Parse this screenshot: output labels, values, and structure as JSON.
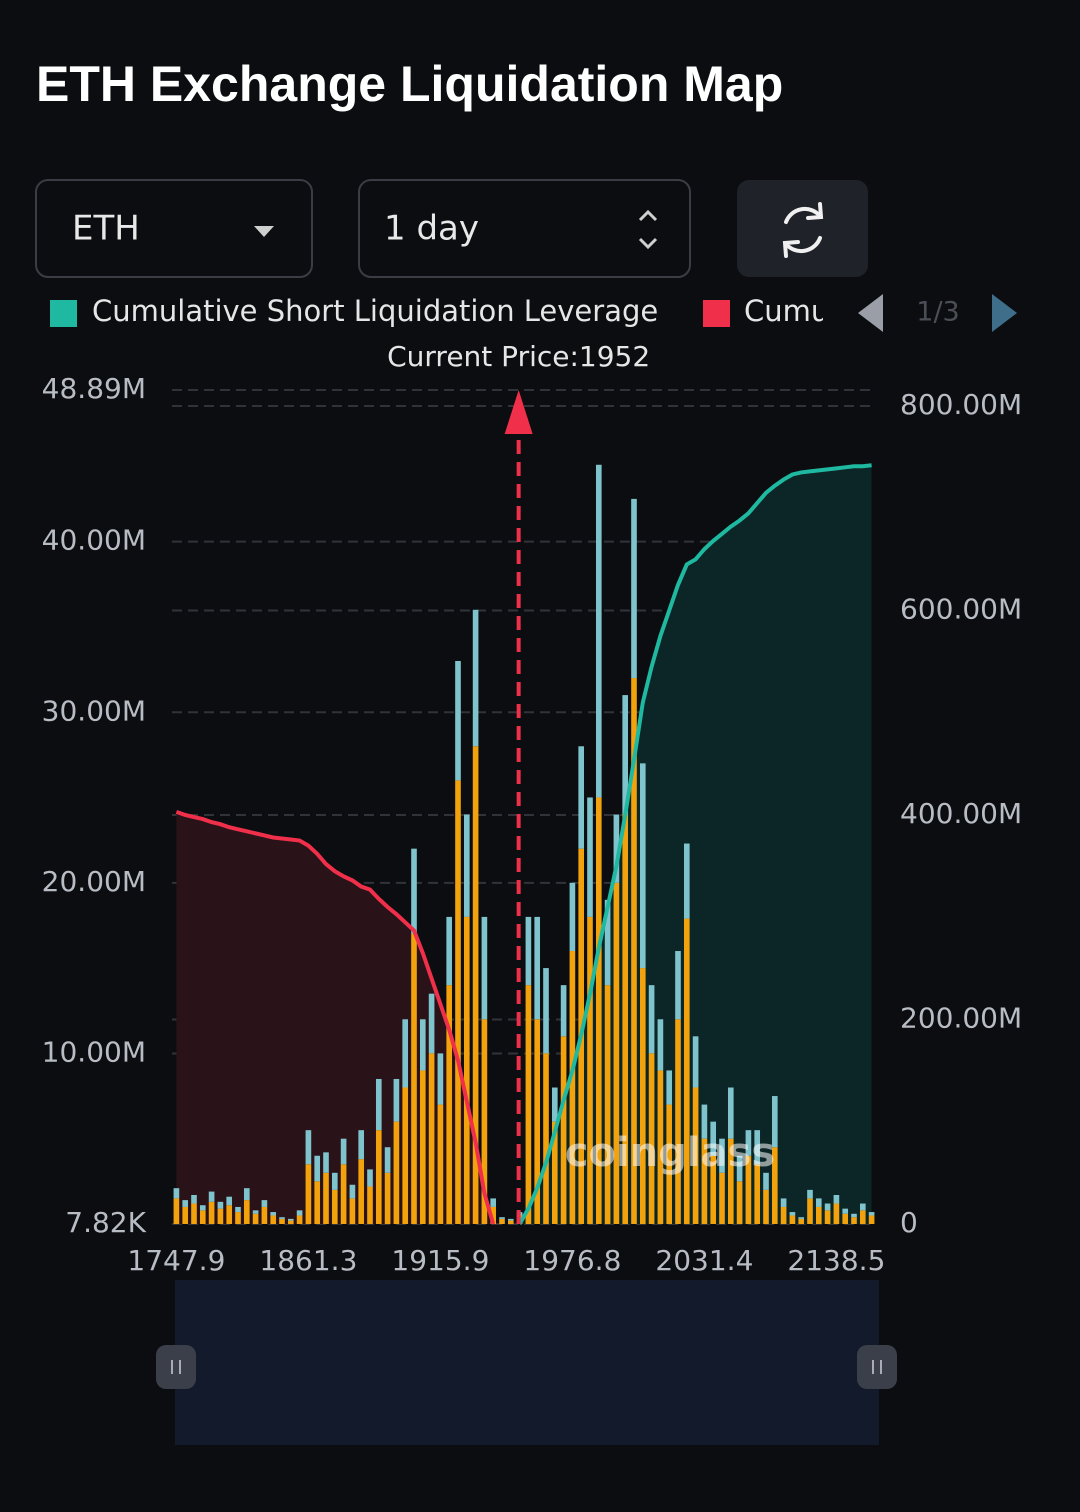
{
  "header": {
    "title": "ETH Exchange Liquidation Map"
  },
  "controls": {
    "coin": "ETH",
    "period": "1 day"
  },
  "legend_pager": "1/3",
  "watermark": "coinglass",
  "chart_data": {
    "type": "bar",
    "categories": [
      1747.9,
      null,
      null,
      null,
      null,
      null,
      null,
      null,
      null,
      null,
      null,
      null,
      null,
      null,
      null,
      1861.3,
      null,
      null,
      null,
      null,
      null,
      null,
      null,
      null,
      null,
      null,
      null,
      null,
      null,
      null,
      1915.9,
      null,
      null,
      null,
      null,
      null,
      null,
      null,
      null,
      null,
      null,
      null,
      null,
      null,
      null,
      1976.8,
      null,
      null,
      null,
      null,
      null,
      null,
      null,
      null,
      null,
      null,
      null,
      null,
      null,
      null,
      2031.4,
      null,
      null,
      null,
      null,
      null,
      null,
      null,
      null,
      null,
      null,
      null,
      null,
      null,
      null,
      2138.5,
      null,
      null,
      null,
      null
    ],
    "current_price": {
      "value": 1952,
      "label": "Current Price:1952"
    },
    "series": [
      {
        "color": "#f2a20c",
        "values": [
          1500000.0,
          1000000.0,
          1200000.0,
          800000.0,
          1300000.0,
          900000.0,
          1100000.0,
          700000.0,
          1400000.0,
          600000.0,
          1000000.0,
          500000.0,
          300000.0,
          200000.0,
          500000.0,
          3500000.0,
          2500000.0,
          3000000.0,
          2000000.0,
          3500000.0,
          1500000.0,
          3800000.0,
          2200000.0,
          5500000.0,
          3000000.0,
          6000000.0,
          8000000.0,
          17000000.0,
          9000000.0,
          10000000.0,
          7000000.0,
          14000000.0,
          26000000.0,
          18000000.0,
          28000000.0,
          12000000.0,
          1000000.0,
          300000.0,
          200000.0,
          500000.0,
          14000000.0,
          12000000.0,
          10000000.0,
          6000000.0,
          11000000.0,
          16000000.0,
          22000000.0,
          18000000.0,
          25000000.0,
          14000000.0,
          20000000.0,
          24000000.0,
          32000000.0,
          15000000.0,
          10000000.0,
          9000000.0,
          7000000.0,
          12000000.0,
          17900000.0,
          8000000.0,
          5000000.0,
          4000000.0,
          3000000.0,
          5000000.0,
          2500000.0,
          4000000.0,
          3500000.0,
          2000000.0,
          4500000.0,
          1000000.0,
          500000.0,
          300000.0,
          1500000.0,
          1000000.0,
          800000.0,
          1200000.0,
          600000.0,
          400000.0,
          800000.0,
          500000.0
        ]
      },
      {
        "color": "#7fc3cc",
        "values": [
          600000.0,
          400000.0,
          500000.0,
          300000.0,
          600000.0,
          400000.0,
          500000.0,
          300000.0,
          700000.0,
          200000.0,
          400000.0,
          200000.0,
          100000.0,
          100000.0,
          300000.0,
          2000000.0,
          1500000.0,
          1200000.0,
          1000000.0,
          1500000.0,
          800000.0,
          1700000.0,
          1000000.0,
          3000000.0,
          1500000.0,
          2500000.0,
          4000000.0,
          5000000.0,
          3000000.0,
          3500000.0,
          3000000.0,
          4000000.0,
          7000000.0,
          6000000.0,
          8000000.0,
          6000000.0,
          500000.0,
          100000.0,
          100000.0,
          200000.0,
          4000000.0,
          6000000.0,
          5000000.0,
          2000000.0,
          3000000.0,
          4000000.0,
          6000000.0,
          7000000.0,
          19500000.0,
          5000000.0,
          4000000.0,
          7000000.0,
          10500000.0,
          12000000.0,
          4000000.0,
          3000000.0,
          2000000.0,
          4000000.0,
          4400000.0,
          3000000.0,
          2000000.0,
          2000000.0,
          2000000.0,
          3000000.0,
          1500000.0,
          1500000.0,
          2000000.0,
          1000000.0,
          3000000.0,
          500000.0,
          200000.0,
          100000.0,
          500000.0,
          500000.0,
          400000.0,
          500000.0,
          300000.0,
          200000.0,
          400000.0,
          200000.0
        ]
      },
      {
        "name": "Cumulative Short Liquidation Leverage",
        "type": "line",
        "axis": "y2",
        "color": "#1fb8a0",
        "fill": "#0c2526",
        "values": [
          null,
          null,
          null,
          null,
          null,
          null,
          null,
          null,
          null,
          null,
          null,
          null,
          null,
          null,
          null,
          null,
          null,
          null,
          null,
          null,
          null,
          null,
          null,
          null,
          null,
          null,
          null,
          null,
          null,
          null,
          null,
          null,
          null,
          null,
          null,
          null,
          null,
          null,
          null,
          0,
          15000000.0,
          35000000.0,
          60000000.0,
          90000000.0,
          121000000.0,
          150000000.0,
          185000000.0,
          225000000.0,
          270000000.0,
          310000000.0,
          350000000.0,
          400000000.0,
          454000000.0,
          510000000.0,
          545000000.0,
          575000000.0,
          600000000.0,
          625000000.0,
          645000000.0,
          650000000.0,
          660000000.0,
          668000000.0,
          675000000.0,
          682000000.0,
          688000000.0,
          695000000.0,
          705000000.0,
          715000000.0,
          722000000.0,
          728000000.0,
          733000000.0,
          735000000.0,
          736000000.0,
          737000000.0,
          738000000.0,
          739000000.0,
          740000000.0,
          741000000.0,
          741000000.0,
          742000000.0
        ]
      },
      {
        "name": "Cumu",
        "type": "line",
        "axis": "y2",
        "color": "#f0304a",
        "fill": "#2a1318",
        "values": [
          403000000.0,
          400000000.0,
          398000000.0,
          396000000.0,
          393000000.0,
          391000000.0,
          388000000.0,
          386000000.0,
          384000000.0,
          382000000.0,
          380000000.0,
          378000000.0,
          377000000.0,
          376000000.0,
          375000000.0,
          370000000.0,
          362000000.0,
          352000000.0,
          345000000.0,
          340000000.0,
          336000000.0,
          330000000.0,
          327000000.0,
          318000000.0,
          310000000.0,
          303000000.0,
          295000000.0,
          287000000.0,
          265000000.0,
          240000000.0,
          215000000.0,
          190000000.0,
          160000000.0,
          120000000.0,
          80000000.0,
          30000000.0,
          0,
          null,
          null,
          null,
          null,
          null,
          null,
          null,
          null,
          null,
          null,
          null,
          null,
          null,
          null,
          null,
          null,
          null,
          null,
          null,
          null,
          null,
          null,
          null,
          null,
          null,
          null,
          null,
          null,
          null,
          null,
          null,
          null,
          null,
          null,
          null,
          null,
          null,
          null,
          null,
          null,
          null,
          null,
          null
        ]
      }
    ],
    "ylim": [
      7820,
      48890000
    ],
    "yticks": [
      {
        "value": 7820,
        "label": "7.82K"
      },
      {
        "value": 10000000,
        "label": "10.00M"
      },
      {
        "value": 20000000,
        "label": "20.00M"
      },
      {
        "value": 30000000,
        "label": "30.00M"
      },
      {
        "value": 40000000,
        "label": "40.00M"
      },
      {
        "value": 48890000,
        "label": "48.89M"
      }
    ],
    "y2lim": [
      0,
      815600000
    ],
    "y2ticks": [
      0,
      {
        "value": 200000000,
        "label": "200.00M"
      },
      {
        "value": 400000000,
        "label": "400.00M"
      },
      {
        "value": 600000000,
        "label": "600.00M"
      },
      {
        "value": 800000000,
        "label": "800.00M"
      }
    ],
    "grid": true
  }
}
